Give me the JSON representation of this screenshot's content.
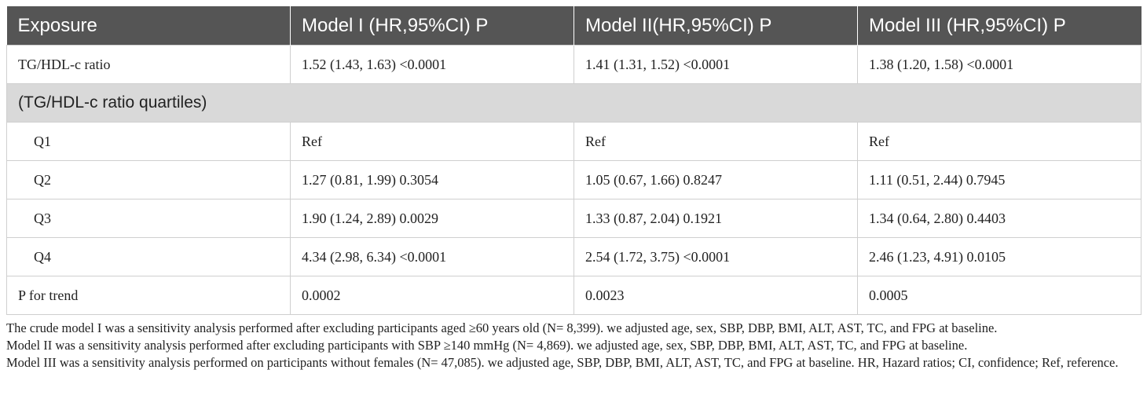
{
  "header": [
    "Exposure",
    "Model I (HR,95%CI) P",
    "Model II(HR,95%CI) P",
    "Model III (HR,95%CI) P"
  ],
  "ratio_row": [
    "TG/HDL-c ratio",
    "1.52 (1.43, 1.63) <0.0001",
    "1.41 (1.31, 1.52) <0.0001",
    "1.38 (1.20, 1.58) <0.0001"
  ],
  "section_label": "(TG/HDL-c ratio quartiles)",
  "quartile_rows": [
    [
      "Q1",
      "Ref",
      "Ref",
      "Ref"
    ],
    [
      "Q2",
      "1.27 (0.81, 1.99) 0.3054",
      "1.05 (0.67, 1.66) 0.8247",
      "1.11 (0.51, 2.44) 0.7945"
    ],
    [
      "Q3",
      "1.90 (1.24, 2.89) 0.0029",
      "1.33 (0.87, 2.04) 0.1921",
      "1.34 (0.64, 2.80) 0.4403"
    ],
    [
      "Q4",
      "4.34 (2.98, 6.34) <0.0001",
      "2.54 (1.72, 3.75) <0.0001",
      "2.46 (1.23, 4.91) 0.0105"
    ]
  ],
  "trend_row": [
    "P for trend",
    "0.0002",
    "0.0023",
    "0.0005"
  ],
  "footnote": [
    "The crude model I was a sensitivity analysis performed after excluding participants aged ≥60 years old (N= 8,399). we adjusted age, sex, SBP, DBP, BMI, ALT, AST, TC, and FPG at baseline.",
    "Model II was a sensitivity analysis performed after excluding participants with SBP ≥140 mmHg (N= 4,869). we adjusted age, sex, SBP, DBP, BMI, ALT, AST, TC, and FPG at baseline.",
    "Model III was a sensitivity analysis performed on participants without females (N= 47,085). we adjusted age, SBP, DBP, BMI, ALT, AST, TC, and FPG at baseline. HR, Hazard ratios; CI, confidence; Ref, reference."
  ]
}
